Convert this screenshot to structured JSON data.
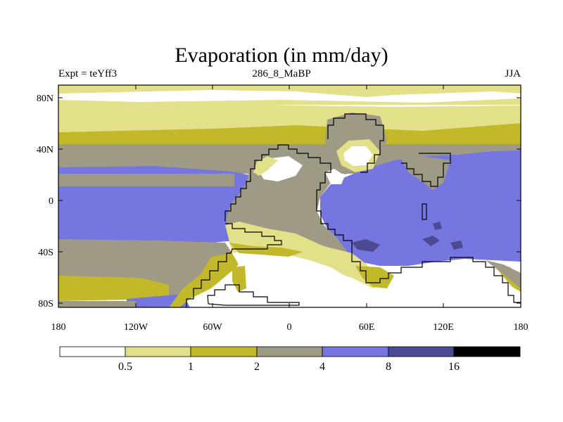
{
  "title": "Evaporation (in mm/day)",
  "experiment_label": "Expt = teYff3",
  "period_label": "286_8_MaBP",
  "season_label": "JJA",
  "lat_ticks": [
    "80N",
    "40N",
    "0",
    "40S",
    "80S"
  ],
  "lon_ticks": [
    "180",
    "120W",
    "60W",
    "0",
    "60E",
    "120E",
    "180"
  ],
  "colorbar": {
    "labels": [
      "0.5",
      "1",
      "2",
      "4",
      "8",
      "16"
    ],
    "colors": [
      "#ffffff",
      "#e3e08a",
      "#c2b92a",
      "#9e9a85",
      "#7576e0",
      "#4b4a92",
      "#000000"
    ]
  },
  "map_colors": {
    "white": "#ffffff",
    "light": "#e3e08a",
    "olive": "#c2b92a",
    "gray": "#9e9a85",
    "blue": "#7576e0",
    "dark": "#4b4a92"
  }
}
